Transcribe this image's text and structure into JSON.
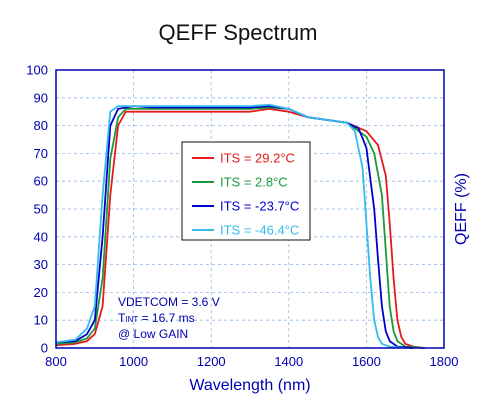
{
  "chart_data": {
    "type": "line",
    "title": "QEFF Spectrum",
    "xlabel": "Wavelength (nm)",
    "ylabel": "QEFF (%)",
    "xlim": [
      800,
      1800
    ],
    "ylim": [
      0,
      100
    ],
    "xticks": [
      "800",
      "1000",
      "1200",
      "1400",
      "1600",
      "1800"
    ],
    "yticks": [
      "0",
      "10",
      "20",
      "30",
      "40",
      "50",
      "60",
      "70",
      "80",
      "90",
      "100"
    ],
    "grid": true,
    "legend_position": "center",
    "annotations": {
      "vdet": "VDETCOM = 3.6 V",
      "tint_main": "T",
      "tint_sub": "INT",
      "tint_rest": " = 16.7 ms",
      "gain": "@ Low GAIN"
    },
    "series": [
      {
        "name": "ITS = 29.2°C",
        "color": "#e41a1c",
        "x": [
          800,
          850,
          880,
          900,
          920,
          940,
          960,
          980,
          1000,
          1050,
          1100,
          1200,
          1300,
          1350,
          1400,
          1450,
          1500,
          1550,
          1600,
          1630,
          1650,
          1660,
          1670,
          1680,
          1690,
          1700,
          1720,
          1750
        ],
        "y": [
          1,
          1.5,
          2.5,
          5,
          15,
          55,
          80,
          85,
          85,
          85,
          85,
          85,
          85,
          86,
          85,
          83,
          82,
          81,
          78,
          73,
          62,
          45,
          25,
          10,
          4,
          1.5,
          0.5,
          0
        ]
      },
      {
        "name": "ITS = 2.8°C",
        "color": "#1a9a3a",
        "x": [
          800,
          850,
          880,
          900,
          920,
          940,
          960,
          980,
          1000,
          1050,
          1100,
          1200,
          1300,
          1350,
          1400,
          1450,
          1500,
          1550,
          1600,
          1620,
          1640,
          1650,
          1660,
          1670,
          1680,
          1700,
          1750
        ],
        "y": [
          1.5,
          2,
          3.5,
          7,
          25,
          68,
          83,
          86,
          86,
          86,
          86,
          86,
          86,
          86.5,
          86,
          83,
          82,
          81,
          76,
          70,
          55,
          35,
          15,
          6,
          2.5,
          0.5,
          0
        ]
      },
      {
        "name": "ITS = -23.7°C",
        "color": "#0000cc",
        "x": [
          800,
          850,
          880,
          900,
          920,
          940,
          960,
          980,
          1000,
          1050,
          1100,
          1200,
          1300,
          1350,
          1400,
          1450,
          1500,
          1550,
          1580,
          1600,
          1620,
          1630,
          1640,
          1650,
          1660,
          1680,
          1720
        ],
        "y": [
          2,
          2.5,
          5,
          10,
          40,
          80,
          86,
          86.5,
          87,
          86.5,
          86.5,
          86.5,
          86.5,
          87,
          86,
          83,
          82,
          81,
          79,
          72,
          50,
          32,
          15,
          6,
          2.5,
          0.5,
          0
        ]
      },
      {
        "name": "ITS = -46.4°C",
        "color": "#33bbee",
        "x": [
          800,
          850,
          880,
          900,
          920,
          940,
          960,
          980,
          1000,
          1050,
          1100,
          1200,
          1300,
          1350,
          1400,
          1450,
          1500,
          1550,
          1570,
          1590,
          1600,
          1610,
          1620,
          1630,
          1640,
          1660,
          1700
        ],
        "y": [
          2,
          3,
          7,
          15,
          55,
          85,
          87,
          87,
          87,
          87,
          87,
          87,
          87,
          87.5,
          86,
          83,
          82,
          81,
          78,
          65,
          45,
          25,
          10,
          4,
          1.5,
          0.5,
          0
        ]
      }
    ]
  }
}
